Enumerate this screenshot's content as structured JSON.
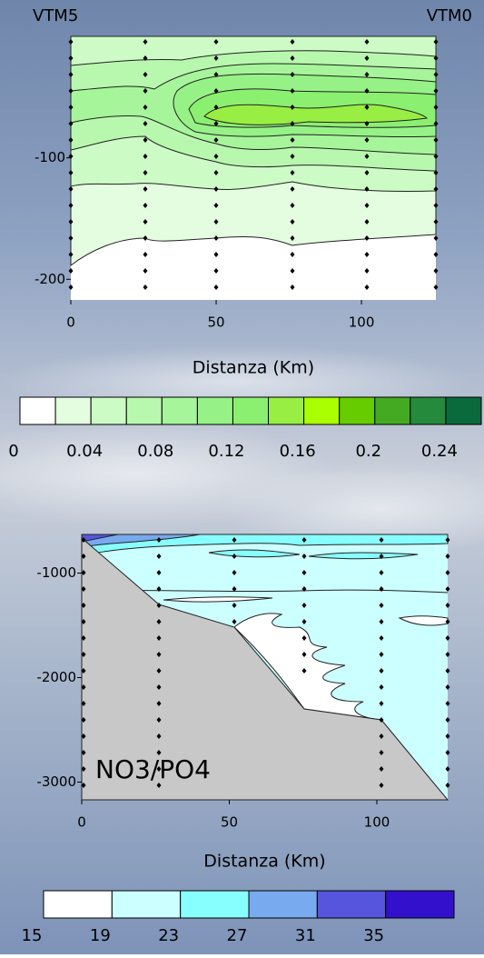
{
  "chart_data": [
    {
      "type": "contour",
      "labels_top": [
        "VTM5",
        "VTM0"
      ],
      "xlabel": "Distanza (Km)",
      "xlim": [
        0,
        125.6
      ],
      "xticks": [
        0,
        50,
        100
      ],
      "ylim": [
        -217,
        0
      ],
      "yticks": [
        -100,
        -200
      ],
      "colorbar": {
        "levels": [
          0,
          0.02,
          0.04,
          0.06,
          0.08,
          0.1,
          0.12,
          0.14,
          0.16,
          0.18,
          0.2,
          0.22,
          0.24,
          0.26
        ],
        "ticks": [
          0,
          0.04,
          0.08,
          0.12,
          0.16,
          0.2,
          0.24
        ],
        "colors": [
          "#ffffff",
          "#e4fde0",
          "#cdfbc6",
          "#b8f8ae",
          "#a6f59a",
          "#96f286",
          "#8bf070",
          "#99ee44",
          "#aaff00",
          "#66cc00",
          "#44aa22",
          "#268a3c",
          "#0a6a3c"
        ]
      }
    },
    {
      "type": "contour",
      "annotation": "NO3/PO4",
      "xlabel": "Distanza (Km)",
      "xlim": [
        0,
        124
      ],
      "xticks": [
        0,
        50,
        100
      ],
      "ylim": [
        -3170,
        -630
      ],
      "yticks": [
        -1000,
        -2000,
        -3000
      ],
      "colorbar": {
        "levels": [
          15,
          19,
          23,
          27,
          31,
          35,
          39
        ],
        "ticks": [
          15,
          19,
          23,
          27,
          31,
          35
        ],
        "colors": [
          "#ffffff",
          "#ccffff",
          "#88ffff",
          "#77aaee",
          "#5555dd",
          "#3311cc"
        ]
      }
    }
  ]
}
